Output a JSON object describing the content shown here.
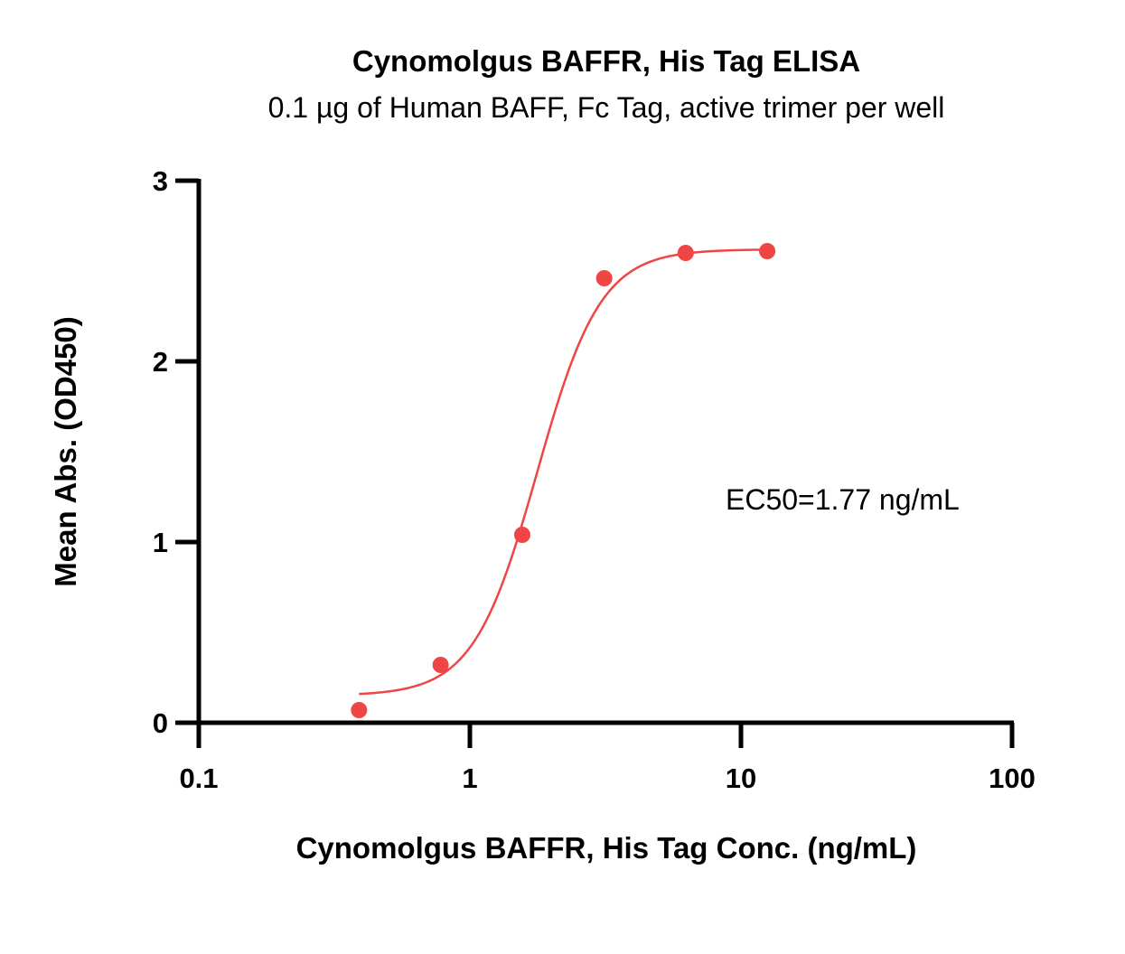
{
  "chart_data": {
    "type": "scatter",
    "title": "Cynomolgus BAFFR, His Tag ELISA",
    "subtitle": "0.1 µg of Human BAFF, Fc Tag, active trimer per well",
    "xlabel": "Cynomolgus BAFFR, His Tag Conc. (ng/mL)",
    "ylabel": "Mean Abs. (OD450)",
    "xscale": "log",
    "xlim": [
      0.1,
      100
    ],
    "ylim": [
      0,
      3
    ],
    "xticks": [
      0.1,
      1,
      10,
      100
    ],
    "xtick_labels": [
      "0.1",
      "1",
      "10",
      "100"
    ],
    "yticks": [
      0,
      1,
      2,
      3
    ],
    "ytick_labels": [
      "0",
      "1",
      "2",
      "3"
    ],
    "grid": false,
    "annotation": "EC50=1.77 ng/mL",
    "series": [
      {
        "points": [
          {
            "x": 0.39,
            "y": 0.07
          },
          {
            "x": 0.78,
            "y": 0.32
          },
          {
            "x": 1.56,
            "y": 1.04
          },
          {
            "x": 3.13,
            "y": 2.46
          },
          {
            "x": 6.25,
            "y": 2.6
          },
          {
            "x": 12.5,
            "y": 2.61
          }
        ],
        "fit": {
          "bottom": 0.15,
          "top": 2.62,
          "ec50": 1.77,
          "hill": 3.7,
          "x_range": [
            0.39,
            12.5
          ]
        },
        "color": "#f04545"
      }
    ]
  }
}
